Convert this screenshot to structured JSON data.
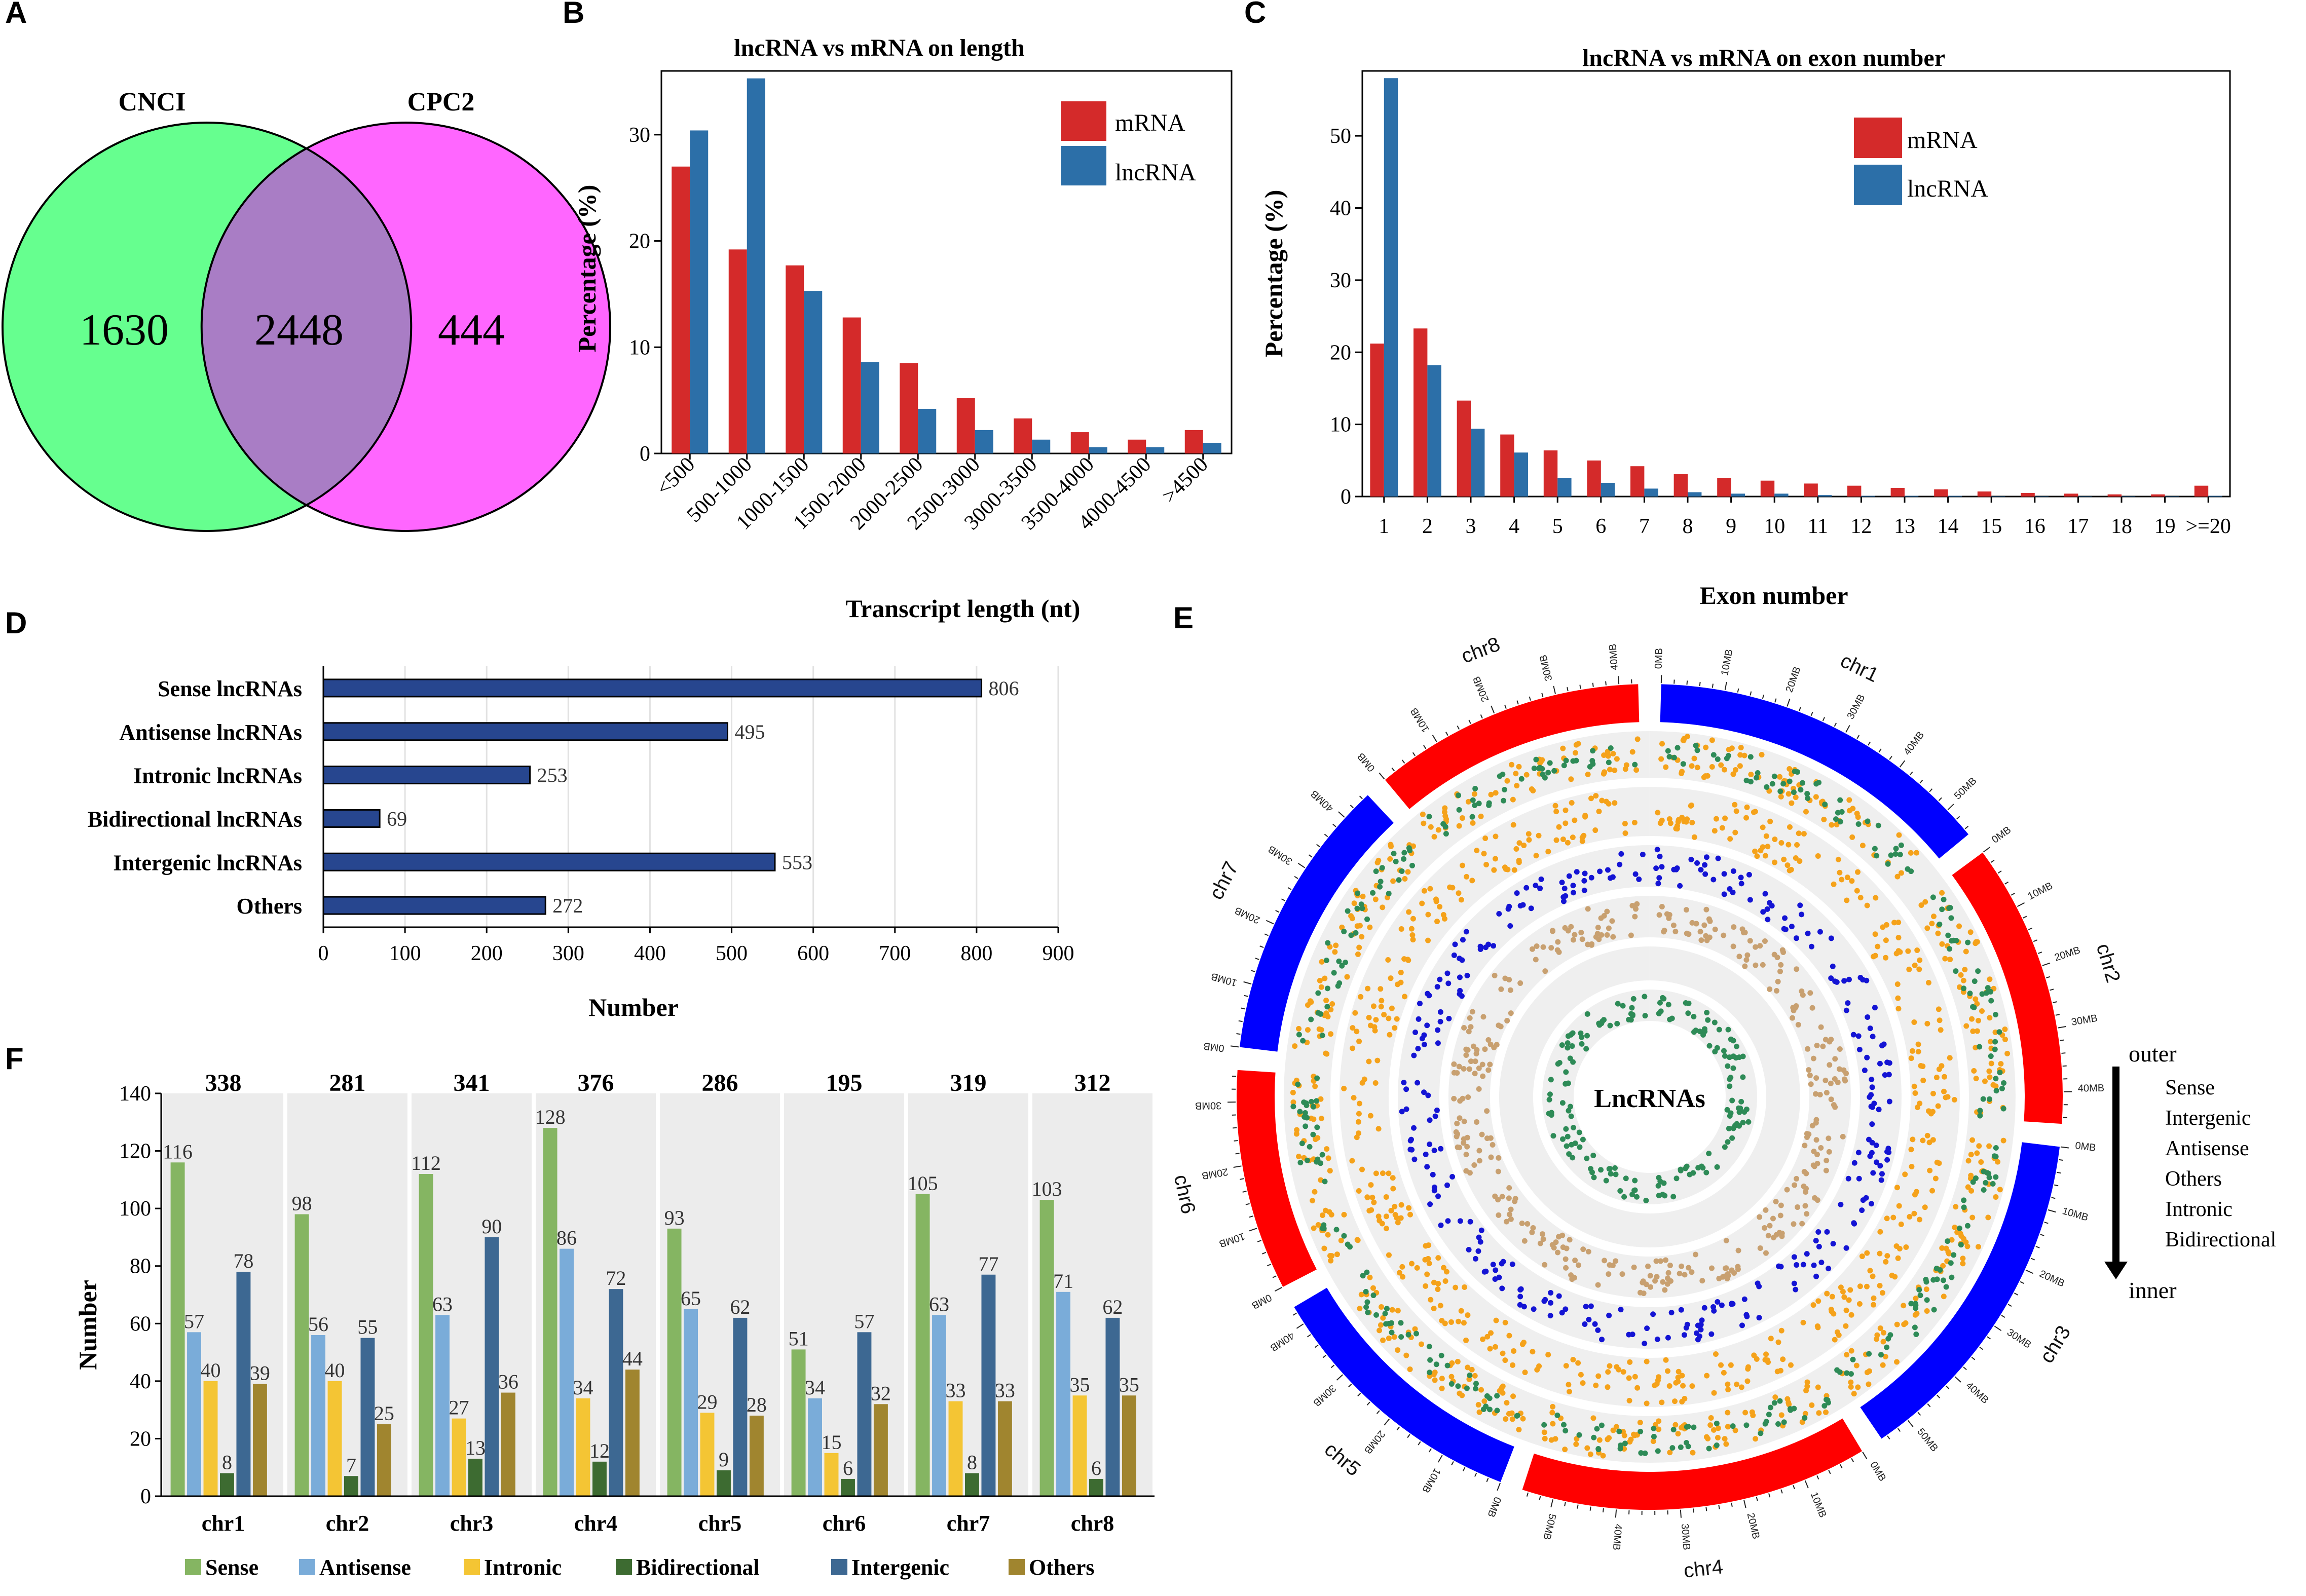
{
  "colors": {
    "mrna": "#d42a2a",
    "lncrna": "#2c6fa8",
    "venn_left": "#66ff8f",
    "venn_right": "#ff66ff",
    "venn_overlap": "#a97dc5",
    "bar_d": "#27468f",
    "f_series": [
      "#85b562",
      "#7aacd9",
      "#f4c534",
      "#3d6b31",
      "#3d6892",
      "#a0852f"
    ],
    "chr_red": "#ff0000",
    "chr_blue": "#0000ff",
    "track": [
      "#f5a21a",
      "#2e8b57",
      "#f5a21a",
      "#1414d4",
      "#c8a070",
      "#2e8b57"
    ]
  },
  "panels": {
    "A": "A",
    "B": "B",
    "C": "C",
    "D": "D",
    "E": "E",
    "F": "F"
  },
  "chart_data": [
    {
      "panel": "A",
      "type": "venn",
      "sets": [
        "CNCI",
        "CPC2"
      ],
      "left_only": "1630",
      "overlap": "2448",
      "right_only": "444"
    },
    {
      "panel": "B",
      "type": "bar",
      "title": "lncRNA vs mRNA on length",
      "xlabel": "Transcript length (nt)",
      "ylabel": "Percentage (%)",
      "ylim": [
        0,
        36
      ],
      "yticks": [
        "0",
        "10",
        "20",
        "30"
      ],
      "categories": [
        "<500",
        "500-1000",
        "1000-1500",
        "1500-2000",
        "2000-2500",
        "2500-3000",
        "3000-3500",
        "3500-4000",
        "4000-4500",
        ">4500"
      ],
      "series": [
        {
          "name": "mRNA",
          "values": [
            27,
            19.2,
            17.7,
            12.8,
            8.5,
            5.2,
            3.3,
            2.0,
            1.3,
            2.2
          ]
        },
        {
          "name": "lncRNA",
          "values": [
            30.4,
            35.3,
            15.3,
            8.6,
            4.2,
            2.2,
            1.3,
            0.6,
            0.6,
            1.0
          ]
        }
      ],
      "legend": "top-right"
    },
    {
      "panel": "C",
      "type": "bar",
      "title": "lncRNA vs mRNA on exon number",
      "xlabel": "Exon number",
      "ylabel": "Percentage (%)",
      "ylim": [
        0,
        59
      ],
      "yticks": [
        "0",
        "10",
        "20",
        "30",
        "40",
        "50"
      ],
      "categories": [
        "1",
        "2",
        "3",
        "4",
        "5",
        "6",
        "7",
        "8",
        "9",
        "10",
        "11",
        "12",
        "13",
        "14",
        "15",
        "16",
        "17",
        "18",
        "19",
        ">=20"
      ],
      "series": [
        {
          "name": "mRNA",
          "values": [
            21.2,
            23.3,
            13.3,
            8.6,
            6.4,
            5.0,
            4.2,
            3.1,
            2.6,
            2.2,
            1.8,
            1.5,
            1.2,
            1.0,
            0.7,
            0.5,
            0.4,
            0.3,
            0.3,
            1.5
          ]
        },
        {
          "name": "lncRNA",
          "values": [
            58.0,
            18.2,
            9.4,
            6.1,
            2.6,
            1.9,
            1.1,
            0.6,
            0.4,
            0.4,
            0.2,
            0.1,
            0.1,
            0.1,
            0.05,
            0.05,
            0.05,
            0.05,
            0.05,
            0.1
          ]
        }
      ],
      "legend": "top-right"
    },
    {
      "panel": "D",
      "type": "bar",
      "orientation": "horizontal",
      "xlabel": "Number",
      "xlim": [
        0,
        900
      ],
      "xticks": [
        "0",
        "100",
        "200",
        "300",
        "400",
        "500",
        "600",
        "700",
        "800",
        "900"
      ],
      "categories": [
        "Sense lncRNAs",
        "Antisense lncRNAs",
        "Intronic lncRNAs",
        "Bidirectional lncRNAs",
        "Intergenic lncRNAs",
        "Others"
      ],
      "values": [
        806,
        495,
        253,
        69,
        553,
        272
      ]
    },
    {
      "panel": "F",
      "type": "bar",
      "ylabel": "Number",
      "ylim": [
        0,
        140
      ],
      "yticks": [
        "0",
        "20",
        "40",
        "60",
        "80",
        "100",
        "120",
        "140"
      ],
      "categories": [
        "chr1",
        "chr2",
        "chr3",
        "chr4",
        "chr5",
        "chr6",
        "chr7",
        "chr8"
      ],
      "totals": [
        "338",
        "281",
        "341",
        "376",
        "286",
        "195",
        "319",
        "312"
      ],
      "series": [
        {
          "name": "Sense",
          "values": [
            116,
            98,
            112,
            128,
            93,
            51,
            105,
            103
          ]
        },
        {
          "name": "Antisense",
          "values": [
            57,
            56,
            63,
            86,
            65,
            34,
            63,
            71
          ]
        },
        {
          "name": "Intronic",
          "values": [
            40,
            40,
            27,
            34,
            29,
            15,
            33,
            35
          ]
        },
        {
          "name": "Bidirectional",
          "values": [
            8,
            7,
            13,
            12,
            9,
            6,
            8,
            6
          ]
        },
        {
          "name": "Intergenic",
          "values": [
            78,
            55,
            90,
            72,
            62,
            57,
            77,
            62
          ]
        },
        {
          "name": "Others",
          "values": [
            39,
            25,
            36,
            44,
            28,
            32,
            33,
            35
          ]
        }
      ],
      "legend": "bottom"
    },
    {
      "panel": "E",
      "type": "circos",
      "center_label": "LncRNAs",
      "chromosomes": [
        {
          "name": "chr1",
          "size_mb": 55
        },
        {
          "name": "chr2",
          "size_mb": 45
        },
        {
          "name": "chr3",
          "size_mb": 55
        },
        {
          "name": "chr4",
          "size_mb": 55
        },
        {
          "name": "chr5",
          "size_mb": 43
        },
        {
          "name": "chr6",
          "size_mb": 35
        },
        {
          "name": "chr7",
          "size_mb": 45
        },
        {
          "name": "chr8",
          "size_mb": 43
        }
      ],
      "tick_unit": "MB",
      "legend": {
        "outer": "outer",
        "inner": "inner",
        "tracks": [
          "Sense",
          "Intergenic",
          "Antisense",
          "Others",
          "Intronic",
          "Bidirectional"
        ]
      }
    }
  ]
}
